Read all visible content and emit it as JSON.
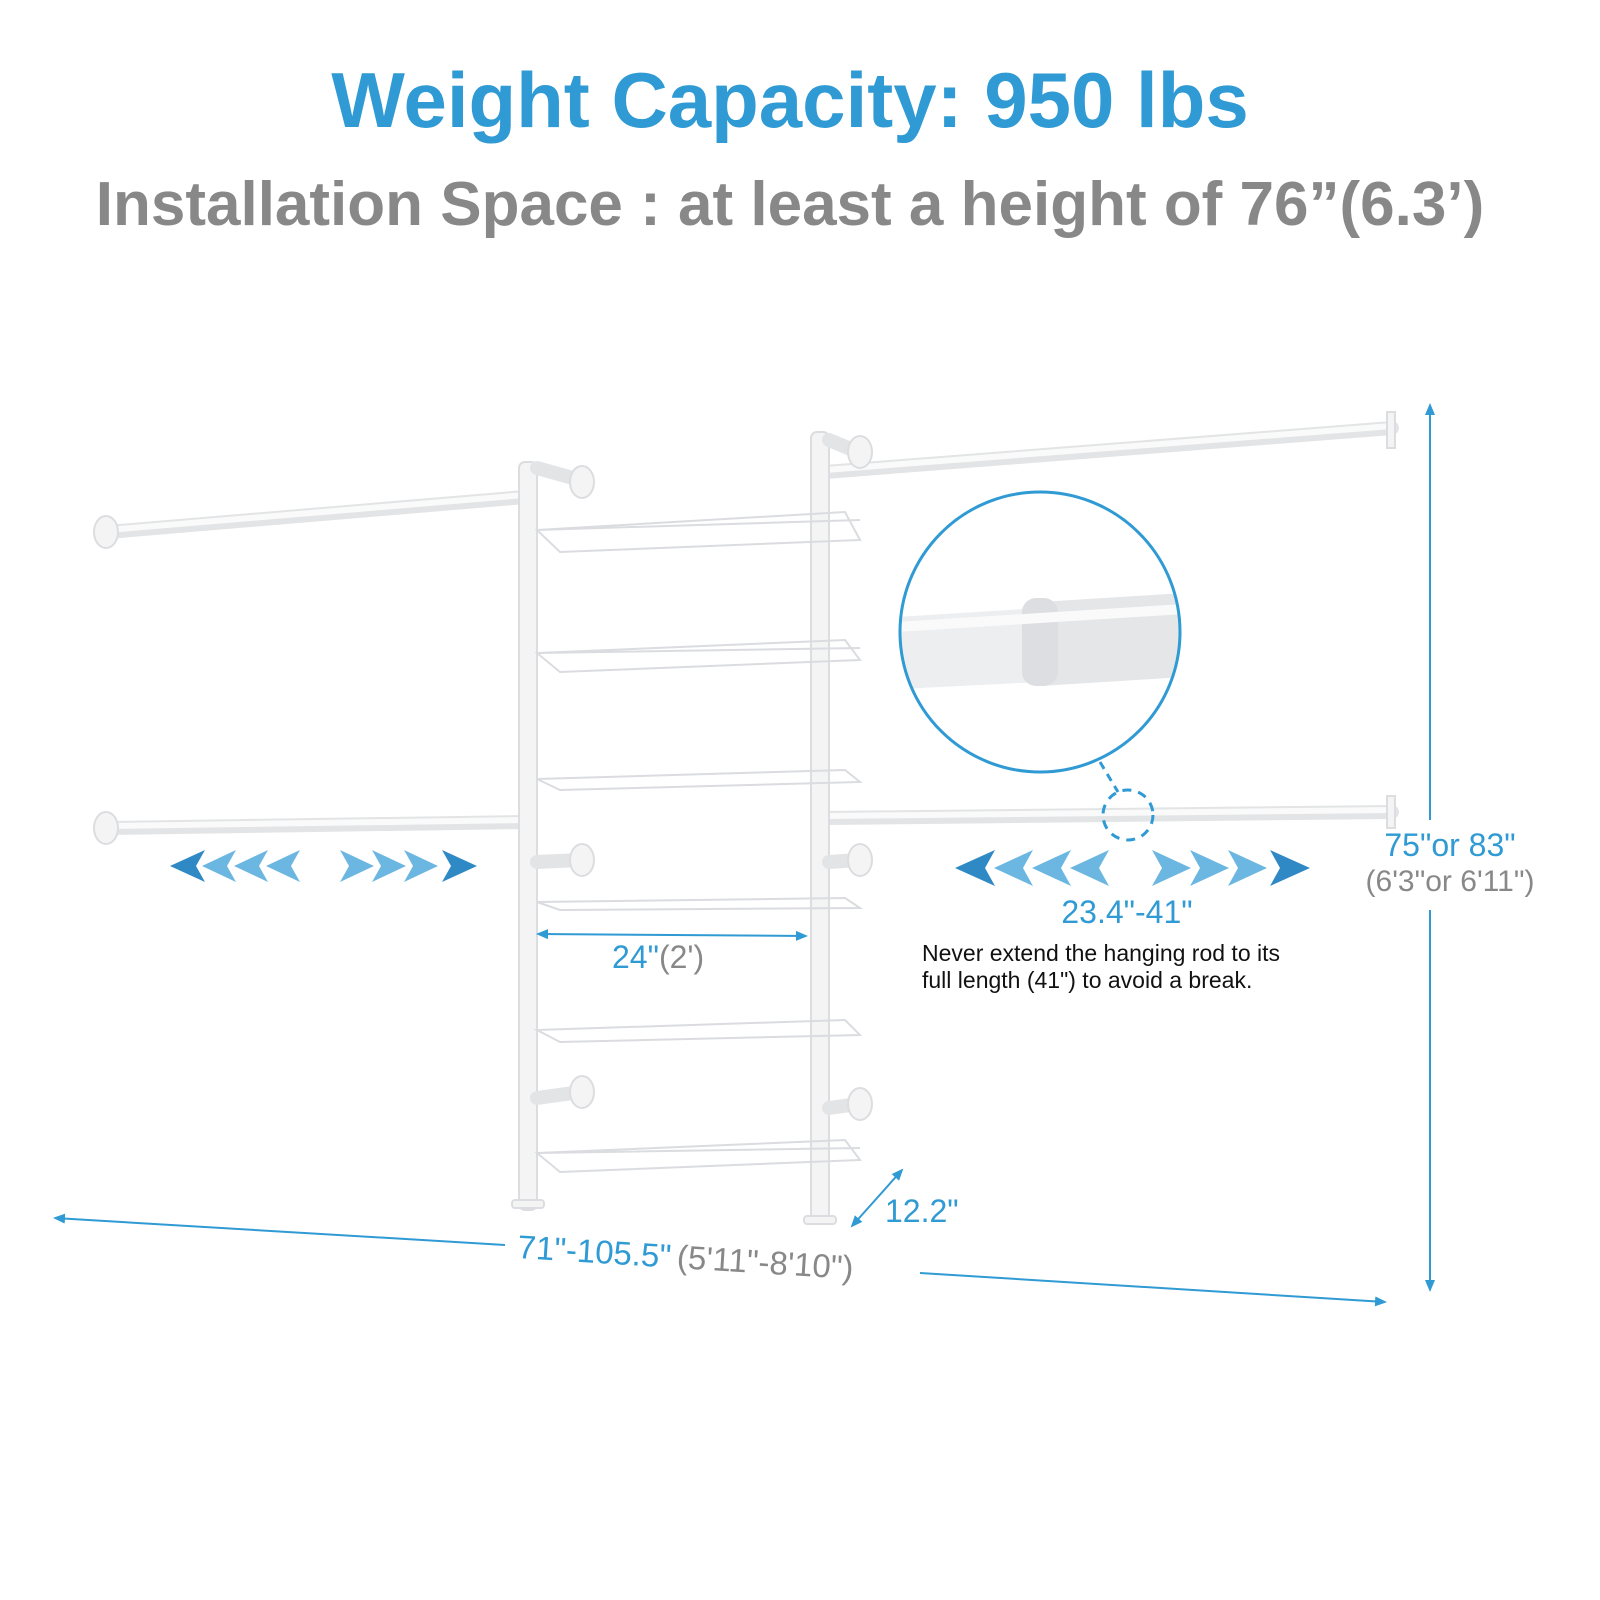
{
  "header": {
    "title": "Weight Capacity: 950 lbs",
    "subtitle": "Installation Space : at least a height of 76”(6.3’)"
  },
  "dimensions": {
    "shelf_width": "24\"",
    "shelf_width_ft": "(2')",
    "rod_length": "23.4\"-41\"",
    "height": "75\"or 83\"",
    "height_ft": "(6'3\"or 6'11\")",
    "depth": "12.2\"",
    "total_width": "71\"-105.5\"",
    "total_width_ft": "(5'11\"-8'10\")"
  },
  "warning": {
    "line1": "Never extend the hanging rod to its",
    "line2": "full length (41\") to avoid a break."
  },
  "colors": {
    "accent": "#2f9ad3",
    "secondary_text": "#888888"
  }
}
